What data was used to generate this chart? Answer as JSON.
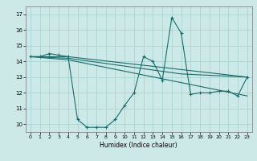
{
  "background_color": "#cce9e8",
  "grid_color": "#aad4d2",
  "line_color": "#1a6b6b",
  "xlabel": "Humidex (Indice chaleur)",
  "xlim": [
    -0.5,
    23.5
  ],
  "ylim": [
    9.5,
    17.5
  ],
  "xticks": [
    0,
    1,
    2,
    3,
    4,
    5,
    6,
    7,
    8,
    9,
    10,
    11,
    12,
    13,
    14,
    15,
    16,
    17,
    18,
    19,
    20,
    21,
    22,
    23
  ],
  "yticks": [
    10,
    11,
    12,
    13,
    14,
    15,
    16,
    17
  ],
  "line1_x": [
    0,
    1,
    2,
    3,
    4,
    5,
    6,
    7,
    8,
    9,
    10,
    11,
    12,
    13,
    14,
    15,
    16,
    17,
    18,
    19,
    20,
    21,
    22,
    23
  ],
  "line1_y": [
    14.3,
    14.3,
    14.5,
    14.4,
    14.3,
    10.3,
    9.8,
    9.8,
    9.8,
    10.3,
    11.2,
    12.0,
    14.3,
    14.0,
    12.8,
    16.8,
    15.8,
    11.9,
    12.0,
    12.0,
    12.1,
    12.1,
    11.8,
    13.0
  ],
  "line2_x": [
    0,
    4,
    23
  ],
  "line2_y": [
    14.3,
    14.3,
    13.0
  ],
  "line3_x": [
    0,
    4,
    23
  ],
  "line3_y": [
    14.3,
    14.1,
    11.8
  ],
  "line4_x": [
    0,
    4,
    16,
    23
  ],
  "line4_y": [
    14.3,
    14.2,
    13.2,
    13.0
  ]
}
